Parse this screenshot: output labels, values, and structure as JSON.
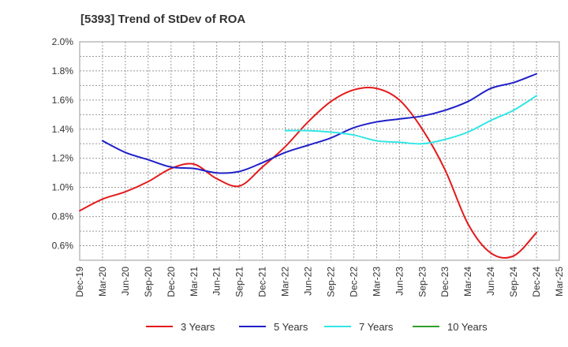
{
  "chart_data": {
    "type": "line",
    "title": "[5393]  Trend of StDev of ROA",
    "x": [
      "Dec-19",
      "Mar-20",
      "Jun-20",
      "Sep-20",
      "Dec-20",
      "Mar-21",
      "Jun-21",
      "Sep-21",
      "Dec-21",
      "Mar-22",
      "Jun-22",
      "Sep-22",
      "Dec-22",
      "Mar-23",
      "Jun-23",
      "Sep-23",
      "Dec-23",
      "Mar-24",
      "Jun-24",
      "Sep-24",
      "Dec-24",
      "Mar-25"
    ],
    "y_ticks": [
      "0.6%",
      "0.8%",
      "1.0%",
      "1.2%",
      "1.4%",
      "1.6%",
      "1.8%",
      "2.0%"
    ],
    "ylim": [
      0.5,
      2.0
    ],
    "grid": true,
    "legend_position": "bottom",
    "series": [
      {
        "name": "3 Years",
        "color": "#e31a1c",
        "points": [
          [
            "Dec-19",
            0.84
          ],
          [
            "Mar-20",
            0.92
          ],
          [
            "Jun-20",
            0.97
          ],
          [
            "Sep-20",
            1.04
          ],
          [
            "Dec-20",
            1.13
          ],
          [
            "Mar-21",
            1.16
          ],
          [
            "Jun-21",
            1.06
          ],
          [
            "Sep-21",
            1.01
          ],
          [
            "Dec-21",
            1.14
          ],
          [
            "Mar-22",
            1.28
          ],
          [
            "Jun-22",
            1.45
          ],
          [
            "Sep-22",
            1.59
          ],
          [
            "Dec-22",
            1.67
          ],
          [
            "Mar-23",
            1.68
          ],
          [
            "Jun-23",
            1.6
          ],
          [
            "Sep-23",
            1.4
          ],
          [
            "Dec-23",
            1.12
          ],
          [
            "Mar-24",
            0.75
          ],
          [
            "Jun-24",
            0.55
          ],
          [
            "Sep-24",
            0.53
          ],
          [
            "Dec-24",
            0.69
          ]
        ]
      },
      {
        "name": "5 Years",
        "color": "#1f1fc8",
        "points": [
          [
            "Mar-20",
            1.32
          ],
          [
            "Jun-20",
            1.24
          ],
          [
            "Sep-20",
            1.19
          ],
          [
            "Dec-20",
            1.14
          ],
          [
            "Mar-21",
            1.13
          ],
          [
            "Jun-21",
            1.1
          ],
          [
            "Sep-21",
            1.11
          ],
          [
            "Dec-21",
            1.17
          ],
          [
            "Mar-22",
            1.24
          ],
          [
            "Jun-22",
            1.29
          ],
          [
            "Sep-22",
            1.34
          ],
          [
            "Dec-22",
            1.41
          ],
          [
            "Mar-23",
            1.45
          ],
          [
            "Jun-23",
            1.47
          ],
          [
            "Sep-23",
            1.49
          ],
          [
            "Dec-23",
            1.53
          ],
          [
            "Mar-24",
            1.59
          ],
          [
            "Jun-24",
            1.68
          ],
          [
            "Sep-24",
            1.72
          ],
          [
            "Dec-24",
            1.78
          ]
        ]
      },
      {
        "name": "7 Years",
        "color": "#33e5e5",
        "points": [
          [
            "Mar-22",
            1.39
          ],
          [
            "Jun-22",
            1.39
          ],
          [
            "Sep-22",
            1.38
          ],
          [
            "Dec-22",
            1.36
          ],
          [
            "Mar-23",
            1.32
          ],
          [
            "Jun-23",
            1.31
          ],
          [
            "Sep-23",
            1.3
          ],
          [
            "Dec-23",
            1.33
          ],
          [
            "Mar-24",
            1.38
          ],
          [
            "Jun-24",
            1.46
          ],
          [
            "Sep-24",
            1.53
          ],
          [
            "Dec-24",
            1.63
          ]
        ]
      },
      {
        "name": "10 Years",
        "color": "#2ca02c",
        "points": []
      }
    ]
  }
}
